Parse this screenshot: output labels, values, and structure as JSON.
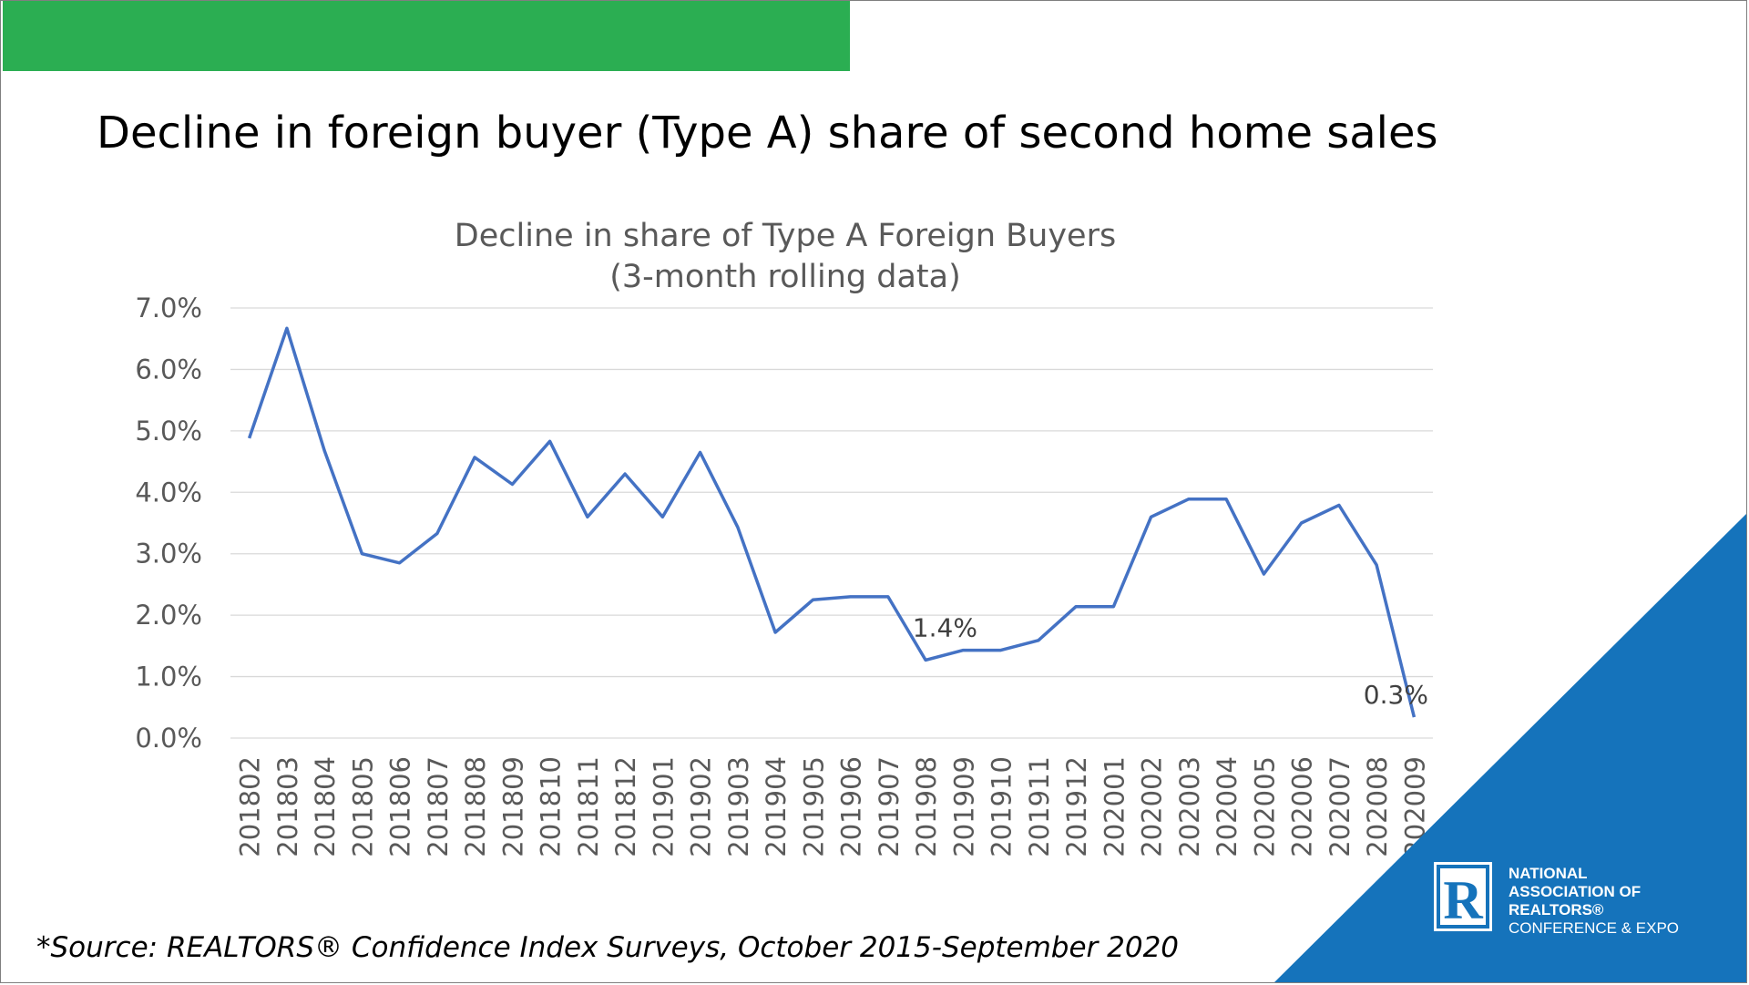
{
  "slide": {
    "title": "Decline in foreign buyer (Type A) share of second home sales",
    "source": "*Source: REALTORS® Confidence Index Surveys, October 2015-September 2020",
    "accent_green": "#2bae52",
    "accent_blue": "#1573bb"
  },
  "logo": {
    "mark": "R",
    "line1": "NATIONAL",
    "line2": "ASSOCIATION OF",
    "line3": "REALTORS®",
    "line4": "CONFERENCE & EXPO"
  },
  "chart_data": {
    "type": "line",
    "title": "Decline in share of Type A Foreign Buyers",
    "subtitle": "(3-month rolling data)",
    "xlabel": "",
    "ylabel": "",
    "ylim": [
      0,
      7
    ],
    "y_ticks": [
      "0.0%",
      "1.0%",
      "2.0%",
      "3.0%",
      "4.0%",
      "5.0%",
      "6.0%",
      "7.0%"
    ],
    "grid": true,
    "line_color": "#4472c4",
    "x": [
      "201802",
      "201803",
      "201804",
      "201805",
      "201806",
      "201807",
      "201808",
      "201809",
      "201810",
      "201811",
      "201812",
      "201901",
      "201902",
      "201903",
      "201904",
      "201905",
      "201906",
      "201907",
      "201908",
      "201909",
      "201910",
      "201911",
      "201912",
      "202001",
      "202002",
      "202003",
      "202004",
      "202005",
      "202006",
      "202007",
      "202008",
      "202009"
    ],
    "series": [
      {
        "values": [
          4.88,
          6.67,
          4.68,
          3.0,
          2.85,
          3.33,
          4.57,
          4.13,
          4.83,
          3.6,
          4.3,
          3.6,
          4.65,
          3.43,
          1.72,
          2.25,
          2.3,
          2.3,
          1.27,
          1.43,
          1.43,
          1.59,
          2.14,
          2.14,
          3.6,
          3.89,
          3.89,
          2.67,
          3.5,
          3.79,
          2.82,
          0.34
        ]
      }
    ],
    "annotations": [
      {
        "x": "201909",
        "value": 1.43,
        "label": "1.4%"
      },
      {
        "x": "202009",
        "value": 0.34,
        "label": "0.3%"
      }
    ]
  }
}
